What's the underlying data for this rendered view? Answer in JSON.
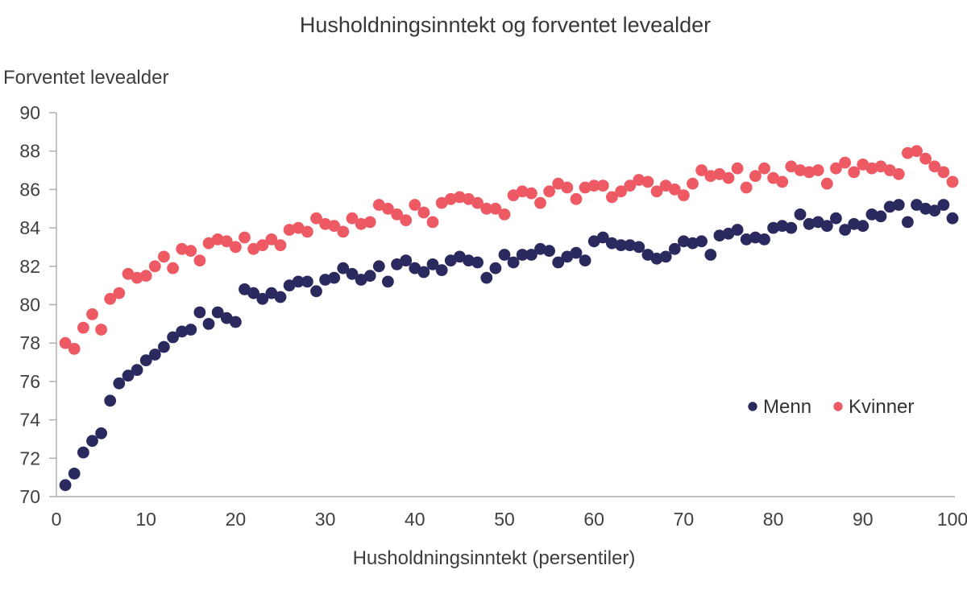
{
  "title": "Husholdningsinntekt og forventet levealder",
  "y_axis_label": "Forventet levealder",
  "x_axis_label": "Husholdningsinntekt (persentiler)",
  "colors": {
    "menn": "#2B2A5E",
    "kvinner": "#EE5A64",
    "axis": "#ABABAB",
    "text": "#3D3D3D"
  },
  "chart_data": {
    "type": "scatter",
    "title": "Husholdningsinntekt og forventet levealder",
    "xlabel": "Husholdningsinntekt (persentiler)",
    "ylabel": "Forventet levealder",
    "xlim": [
      0,
      100
    ],
    "ylim": [
      70,
      90
    ],
    "x_ticks": [
      0,
      10,
      20,
      30,
      40,
      50,
      60,
      70,
      80,
      90,
      100
    ],
    "y_ticks": [
      70,
      72,
      74,
      76,
      78,
      80,
      82,
      84,
      86,
      88,
      90
    ],
    "grid": false,
    "legend_position": "middle-right",
    "x_definition": "percentile 1-100 (index+1)",
    "series": [
      {
        "name": "Menn",
        "color": "#2B2A5E",
        "values": [
          70.6,
          71.2,
          72.3,
          72.9,
          73.3,
          75.0,
          75.9,
          76.3,
          76.6,
          77.1,
          77.4,
          77.8,
          78.3,
          78.6,
          78.7,
          79.6,
          79.0,
          79.6,
          79.3,
          79.1,
          80.8,
          80.6,
          80.3,
          80.6,
          80.4,
          81.0,
          81.2,
          81.2,
          80.7,
          81.3,
          81.4,
          81.9,
          81.6,
          81.3,
          81.5,
          82.0,
          81.2,
          82.1,
          82.3,
          81.9,
          81.7,
          82.1,
          81.8,
          82.3,
          82.5,
          82.3,
          82.2,
          81.4,
          81.9,
          82.6,
          82.2,
          82.6,
          82.6,
          82.9,
          82.8,
          82.2,
          82.5,
          82.7,
          82.3,
          83.3,
          83.5,
          83.2,
          83.1,
          83.1,
          83.0,
          82.6,
          82.4,
          82.5,
          82.9,
          83.3,
          83.2,
          83.3,
          82.6,
          83.6,
          83.7,
          83.9,
          83.4,
          83.5,
          83.4,
          84.0,
          84.1,
          84.0,
          84.7,
          84.2,
          84.3,
          84.1,
          84.5,
          83.9,
          84.2,
          84.1,
          84.7,
          84.6,
          85.1,
          85.2,
          84.3,
          85.2,
          85.0,
          84.9,
          85.2,
          84.5
        ]
      },
      {
        "name": "Kvinner",
        "color": "#EE5A64",
        "values": [
          78.0,
          77.7,
          78.8,
          79.5,
          78.7,
          80.3,
          80.6,
          81.6,
          81.4,
          81.5,
          82.0,
          82.5,
          81.9,
          82.9,
          82.8,
          82.3,
          83.2,
          83.4,
          83.3,
          83.0,
          83.5,
          82.9,
          83.1,
          83.4,
          83.1,
          83.9,
          84.0,
          83.8,
          84.5,
          84.2,
          84.1,
          83.8,
          84.5,
          84.2,
          84.3,
          85.2,
          85.0,
          84.7,
          84.4,
          85.2,
          84.8,
          84.3,
          85.3,
          85.5,
          85.6,
          85.5,
          85.3,
          85.0,
          85.0,
          84.7,
          85.7,
          85.9,
          85.8,
          85.3,
          85.9,
          86.3,
          86.1,
          85.5,
          86.1,
          86.2,
          86.2,
          85.6,
          85.9,
          86.2,
          86.5,
          86.4,
          85.9,
          86.2,
          86.0,
          85.7,
          86.3,
          87.0,
          86.7,
          86.8,
          86.6,
          87.1,
          86.1,
          86.7,
          87.1,
          86.6,
          86.4,
          87.2,
          87.0,
          86.9,
          87.0,
          86.3,
          87.1,
          87.4,
          86.9,
          87.3,
          87.1,
          87.2,
          87.0,
          86.8,
          87.9,
          88.0,
          87.6,
          87.2,
          86.9,
          86.4
        ]
      }
    ]
  }
}
